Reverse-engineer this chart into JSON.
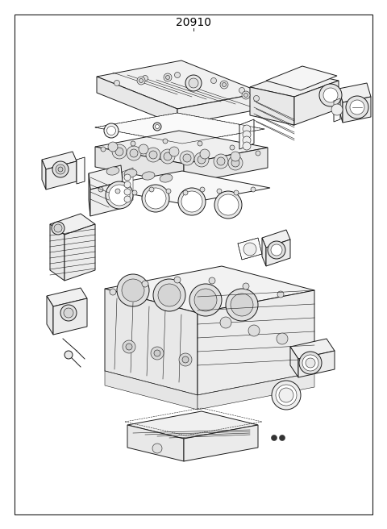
{
  "title": "20910",
  "bg_color": "#ffffff",
  "border_color": "#1a1a1a",
  "line_color": "#1a1a1a",
  "title_fontsize": 10,
  "fig_width": 4.8,
  "fig_height": 6.56,
  "dpi": 100
}
